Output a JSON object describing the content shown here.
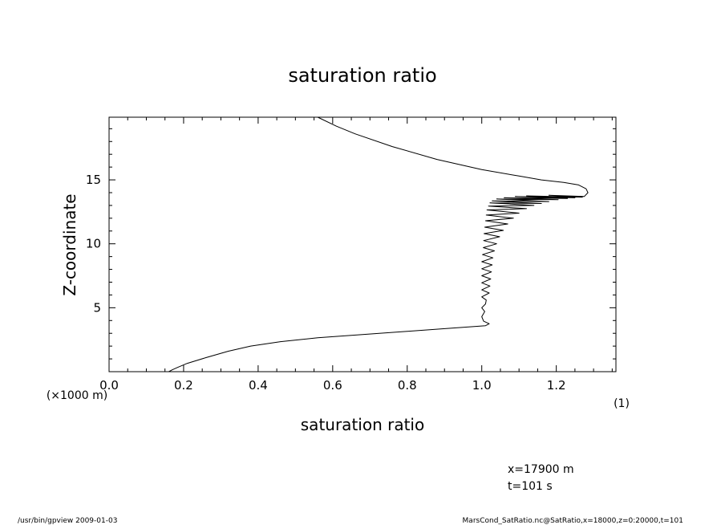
{
  "chart_data": {
    "type": "line",
    "title": "saturation ratio",
    "xlabel": "saturation ratio",
    "ylabel": "Z-coordinate",
    "x_unit_label": "(1)",
    "y_unit_label": "(×1000 m)",
    "xlim": [
      0.0,
      1.36
    ],
    "ylim": [
      0.0,
      19.9
    ],
    "x_ticks": [
      0.0,
      0.2,
      0.4,
      0.6,
      0.8,
      1.0,
      1.2
    ],
    "x_tick_labels": [
      "0.0",
      "0.2",
      "0.4",
      "0.6",
      "0.8",
      "1.0",
      "1.2"
    ],
    "y_ticks": [
      5,
      10,
      15
    ],
    "y_tick_labels": [
      "5",
      "10",
      "15"
    ],
    "grid": false,
    "series": [
      {
        "x": [
          0.16,
          0.17,
          0.185,
          0.21,
          0.26,
          0.32,
          0.38,
          0.46,
          0.56,
          0.68,
          0.8,
          0.92,
          1.01,
          1.02,
          1.005,
          1.0,
          1.008,
          1.0,
          1.01,
          1.012,
          1.0,
          1.02,
          1.0,
          1.022,
          1.0,
          1.024,
          1.0,
          1.026,
          1.0,
          1.028,
          1.0,
          1.03,
          1.002,
          1.034,
          1.004,
          1.04,
          1.005,
          1.048,
          1.006,
          1.058,
          1.008,
          1.07,
          1.01,
          1.085,
          1.012,
          1.1,
          1.014,
          1.12,
          1.018,
          1.14,
          1.022,
          1.16,
          1.028,
          1.18,
          1.04,
          1.205,
          1.06,
          1.23,
          1.09,
          1.25,
          1.12,
          1.27,
          1.18,
          1.275,
          1.285,
          1.28,
          1.26,
          1.22,
          1.16,
          1.1,
          1.0,
          0.88,
          0.76,
          0.66,
          0.61,
          0.56
        ],
        "y": [
          0.0,
          0.15,
          0.35,
          0.65,
          1.1,
          1.6,
          2.0,
          2.35,
          2.65,
          2.9,
          3.15,
          3.4,
          3.6,
          3.75,
          3.95,
          4.3,
          4.7,
          5.0,
          5.3,
          5.6,
          5.85,
          6.15,
          6.4,
          6.7,
          6.95,
          7.25,
          7.5,
          7.8,
          8.05,
          8.35,
          8.6,
          8.9,
          9.15,
          9.45,
          9.7,
          10.0,
          10.25,
          10.55,
          10.8,
          11.05,
          11.3,
          11.55,
          11.8,
          12.0,
          12.25,
          12.4,
          12.65,
          12.75,
          12.95,
          13.0,
          13.2,
          13.15,
          13.35,
          13.3,
          13.5,
          13.45,
          13.6,
          13.55,
          13.7,
          13.6,
          13.75,
          13.65,
          13.8,
          13.7,
          14.0,
          14.3,
          14.6,
          14.8,
          15.0,
          15.3,
          15.8,
          16.6,
          17.6,
          18.6,
          19.2,
          19.9
        ]
      }
    ]
  },
  "annotations": {
    "x_position": "x=17900  m",
    "time": "t=101  s"
  },
  "footer": {
    "left": "/usr/bin/gpview   2009-01-03",
    "right": "MarsCond_SatRatio.nc@SatRatio,x=18000,z=0:20000,t=101"
  }
}
